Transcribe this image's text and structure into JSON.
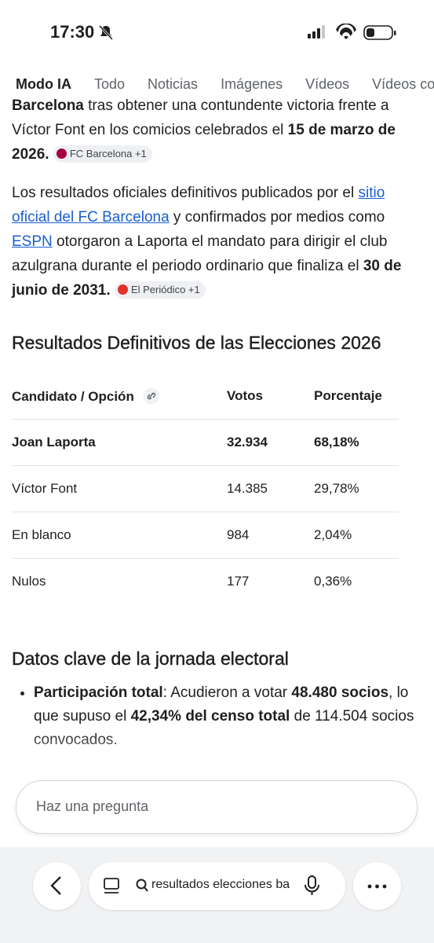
{
  "status_bar": {
    "time": "17:30"
  },
  "tabs": [
    "Modo IA",
    "Todo",
    "Noticias",
    "Imágenes",
    "Vídeos",
    "Vídeos co"
  ],
  "paragraphs": [
    {
      "runs": [
        {
          "text": "Barcelona",
          "bold": true
        },
        {
          "text": " tras obtener una contundente victoria frente a Víctor Font en los comicios celebrados el "
        },
        {
          "text": "15 de marzo de 2026.",
          "bold": true
        }
      ],
      "chip": "FC Barcelona +1"
    },
    {
      "runs": [
        {
          "text": "Los resultados oficiales definitivos publicados por el "
        },
        {
          "text": "sitio oficial del FC Barcelona",
          "link": true
        },
        {
          "text": " y confirmados por medios como "
        },
        {
          "text": "ESPN",
          "link": true
        },
        {
          "text": " otorgaron a Laporta el mandato para dirigir el club azulgrana durante el periodo ordinario que finaliza el "
        },
        {
          "text": "30 de junio de 2031.",
          "bold": true
        }
      ],
      "chip": "El Periódico +1"
    }
  ],
  "table_heading": "Resultados Definitivos de las Elecciones 2026",
  "table": {
    "header": [
      "Candidato / Opción",
      "Votos",
      "Porcentaje"
    ],
    "rows": [
      [
        "Joan Laporta",
        "32.934",
        "68,18%"
      ],
      [
        "Víctor Font",
        "14.385",
        "29,78%"
      ],
      [
        "En blanco",
        "984",
        "2,04%"
      ],
      [
        "Nulos",
        "177",
        "0,36%"
      ]
    ]
  },
  "section_heading": "Datos clave de la jornada electoral",
  "bullets": [
    {
      "runs": [
        {
          "text": "Participación total",
          "bold": true
        },
        {
          "text": ": Acudieron a votar "
        },
        {
          "text": "48.480 socios",
          "bold": true
        },
        {
          "text": ", lo que supuso el "
        },
        {
          "text": "42,34% del censo total",
          "bold": true
        },
        {
          "text": " de 114.504 socios convocados."
        }
      ]
    }
  ],
  "input_placeholder": "Haz una pregunta",
  "search_query": "resultados elecciones ba"
}
